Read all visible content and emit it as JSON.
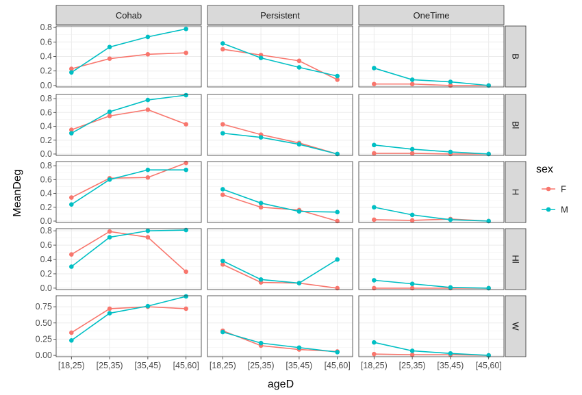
{
  "chart_data": {
    "type": "line",
    "xlabel": "ageD",
    "ylabel": "MeanDeg",
    "categories": [
      "[18,25)",
      "[25,35)",
      "[35,45)",
      "[45,60]"
    ],
    "columns": [
      "Cohab",
      "Persistent",
      "OneTime"
    ],
    "rows": [
      "B",
      "Bl",
      "H",
      "Hl",
      "W"
    ],
    "legend": {
      "title": "sex",
      "entries": [
        {
          "name": "F",
          "color": "#F8766D"
        },
        {
          "name": "M",
          "color": "#00BFC4"
        }
      ],
      "position": "right"
    },
    "grid": true,
    "y_axes": [
      {
        "row": "B",
        "ylim": [
          -0.02,
          0.82
        ],
        "ticks": [
          0.0,
          0.2,
          0.4,
          0.6,
          0.8
        ],
        "tick_labels": [
          "0.0",
          "0.2",
          "0.4",
          "0.6",
          "0.8"
        ]
      },
      {
        "row": "Bl",
        "ylim": [
          -0.02,
          0.86
        ],
        "ticks": [
          0.0,
          0.2,
          0.4,
          0.6,
          0.8
        ],
        "tick_labels": [
          "0.0",
          "0.2",
          "0.4",
          "0.6",
          "0.8"
        ]
      },
      {
        "row": "H",
        "ylim": [
          -0.02,
          0.86
        ],
        "ticks": [
          0.0,
          0.2,
          0.4,
          0.6,
          0.8
        ],
        "tick_labels": [
          "0.0",
          "0.2",
          "0.4",
          "0.6",
          "0.8"
        ]
      },
      {
        "row": "Hl",
        "ylim": [
          -0.02,
          0.83
        ],
        "ticks": [
          0.0,
          0.2,
          0.4,
          0.6,
          0.8
        ],
        "tick_labels": [
          "0.0",
          "0.2",
          "0.4",
          "0.6",
          "0.8"
        ]
      },
      {
        "row": "W",
        "ylim": [
          -0.02,
          0.92
        ],
        "ticks": [
          0.0,
          0.25,
          0.5,
          0.75
        ],
        "tick_labels": [
          "0.00",
          "0.25",
          "0.50",
          "0.75"
        ]
      }
    ],
    "panels": [
      {
        "row": "B",
        "column": "Cohab",
        "series": [
          {
            "name": "F",
            "values": [
              0.23,
              0.37,
              0.43,
              0.45
            ]
          },
          {
            "name": "M",
            "values": [
              0.18,
              0.53,
              0.67,
              0.78
            ]
          }
        ]
      },
      {
        "row": "B",
        "column": "Persistent",
        "series": [
          {
            "name": "F",
            "values": [
              0.5,
              0.42,
              0.34,
              0.08
            ]
          },
          {
            "name": "M",
            "values": [
              0.58,
              0.38,
              0.25,
              0.13
            ]
          }
        ]
      },
      {
        "row": "B",
        "column": "OneTime",
        "series": [
          {
            "name": "F",
            "values": [
              0.02,
              0.02,
              0.0,
              0.0
            ]
          },
          {
            "name": "M",
            "values": [
              0.24,
              0.08,
              0.05,
              0.0
            ]
          }
        ]
      },
      {
        "row": "Bl",
        "column": "Cohab",
        "series": [
          {
            "name": "F",
            "values": [
              0.35,
              0.55,
              0.64,
              0.43
            ]
          },
          {
            "name": "M",
            "values": [
              0.3,
              0.61,
              0.78,
              0.85
            ]
          }
        ]
      },
      {
        "row": "Bl",
        "column": "Persistent",
        "series": [
          {
            "name": "F",
            "values": [
              0.43,
              0.28,
              0.16,
              0.0
            ]
          },
          {
            "name": "M",
            "values": [
              0.3,
              0.24,
              0.14,
              0.0
            ]
          }
        ]
      },
      {
        "row": "Bl",
        "column": "OneTime",
        "series": [
          {
            "name": "F",
            "values": [
              0.01,
              0.01,
              0.0,
              0.0
            ]
          },
          {
            "name": "M",
            "values": [
              0.13,
              0.07,
              0.03,
              0.0
            ]
          }
        ]
      },
      {
        "row": "H",
        "column": "Cohab",
        "series": [
          {
            "name": "F",
            "values": [
              0.34,
              0.62,
              0.63,
              0.84
            ]
          },
          {
            "name": "M",
            "values": [
              0.24,
              0.6,
              0.74,
              0.74
            ]
          }
        ]
      },
      {
        "row": "H",
        "column": "Persistent",
        "series": [
          {
            "name": "F",
            "values": [
              0.38,
              0.2,
              0.16,
              0.0
            ]
          },
          {
            "name": "M",
            "values": [
              0.46,
              0.26,
              0.14,
              0.13
            ]
          }
        ]
      },
      {
        "row": "H",
        "column": "OneTime",
        "series": [
          {
            "name": "F",
            "values": [
              0.02,
              0.01,
              0.03,
              0.0
            ]
          },
          {
            "name": "M",
            "values": [
              0.2,
              0.09,
              0.02,
              0.0
            ]
          }
        ]
      },
      {
        "row": "Hl",
        "column": "Cohab",
        "series": [
          {
            "name": "F",
            "values": [
              0.47,
              0.79,
              0.71,
              0.23
            ]
          },
          {
            "name": "M",
            "values": [
              0.3,
              0.71,
              0.8,
              0.81
            ]
          }
        ]
      },
      {
        "row": "Hl",
        "column": "Persistent",
        "series": [
          {
            "name": "F",
            "values": [
              0.33,
              0.08,
              0.07,
              0.0
            ]
          },
          {
            "name": "M",
            "values": [
              0.38,
              0.12,
              0.07,
              0.4
            ]
          }
        ]
      },
      {
        "row": "Hl",
        "column": "OneTime",
        "series": [
          {
            "name": "F",
            "values": [
              0.0,
              0.0,
              0.0,
              0.0
            ]
          },
          {
            "name": "M",
            "values": [
              0.11,
              0.06,
              0.01,
              0.0
            ]
          }
        ]
      },
      {
        "row": "W",
        "column": "Cohab",
        "series": [
          {
            "name": "F",
            "values": [
              0.35,
              0.72,
              0.75,
              0.72
            ]
          },
          {
            "name": "M",
            "values": [
              0.23,
              0.65,
              0.76,
              0.91
            ]
          }
        ]
      },
      {
        "row": "W",
        "column": "Persistent",
        "series": [
          {
            "name": "F",
            "values": [
              0.38,
              0.15,
              0.09,
              0.06
            ]
          },
          {
            "name": "M",
            "values": [
              0.36,
              0.19,
              0.12,
              0.05
            ]
          }
        ]
      },
      {
        "row": "W",
        "column": "OneTime",
        "series": [
          {
            "name": "F",
            "values": [
              0.02,
              0.01,
              0.01,
              0.0
            ]
          },
          {
            "name": "M",
            "values": [
              0.2,
              0.07,
              0.03,
              0.0
            ]
          }
        ]
      }
    ]
  }
}
